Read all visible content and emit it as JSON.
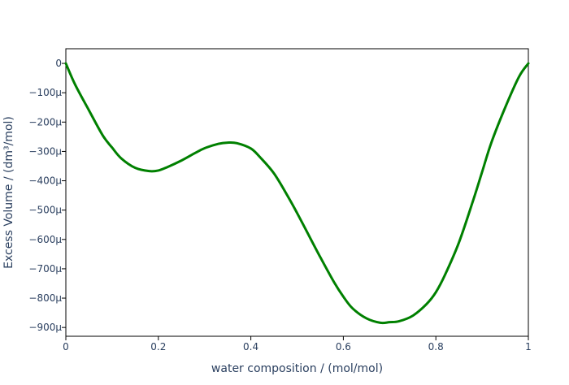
{
  "chart_data": {
    "type": "line",
    "title": "",
    "xlabel": "water composition / (mol/mol)",
    "ylabel": "Excess Volume / (dm³/mol)",
    "xlim": [
      0,
      1
    ],
    "ylim": [
      -930,
      50
    ],
    "y_unit_suffix": "μ",
    "grid": false,
    "x_ticks": [
      {
        "value": 0,
        "label": "0"
      },
      {
        "value": 0.2,
        "label": "0.2"
      },
      {
        "value": 0.4,
        "label": "0.4"
      },
      {
        "value": 0.6,
        "label": "0.6"
      },
      {
        "value": 0.8,
        "label": "0.8"
      },
      {
        "value": 1,
        "label": "1"
      }
    ],
    "y_ticks": [
      {
        "value": 0,
        "label": "0"
      },
      {
        "value": -100,
        "label": "−100μ"
      },
      {
        "value": -200,
        "label": "−200μ"
      },
      {
        "value": -300,
        "label": "−300μ"
      },
      {
        "value": -400,
        "label": "−400μ"
      },
      {
        "value": -500,
        "label": "−500μ"
      },
      {
        "value": -600,
        "label": "−600μ"
      },
      {
        "value": -700,
        "label": "−700μ"
      },
      {
        "value": -800,
        "label": "−800μ"
      },
      {
        "value": -900,
        "label": "−900μ"
      }
    ],
    "series": [
      {
        "color": "#008000",
        "x": [
          0,
          0.02,
          0.05,
          0.08,
          0.1,
          0.12,
          0.15,
          0.18,
          0.2,
          0.22,
          0.25,
          0.28,
          0.3,
          0.33,
          0.35,
          0.37,
          0.4,
          0.42,
          0.45,
          0.48,
          0.5,
          0.52,
          0.55,
          0.58,
          0.6,
          0.62,
          0.65,
          0.68,
          0.7,
          0.72,
          0.75,
          0.78,
          0.8,
          0.82,
          0.85,
          0.88,
          0.9,
          0.92,
          0.95,
          0.98,
          1.0
        ],
        "y": [
          0,
          -72,
          -160,
          -246,
          -287,
          -324,
          -356,
          -367,
          -365,
          -353,
          -331,
          -305,
          -289,
          -274,
          -270,
          -272,
          -290,
          -320,
          -375,
          -453,
          -510,
          -570,
          -660,
          -746,
          -795,
          -835,
          -869,
          -884,
          -882,
          -879,
          -860,
          -820,
          -780,
          -720,
          -610,
          -470,
          -370,
          -270,
          -150,
          -45,
          0
        ]
      }
    ]
  }
}
